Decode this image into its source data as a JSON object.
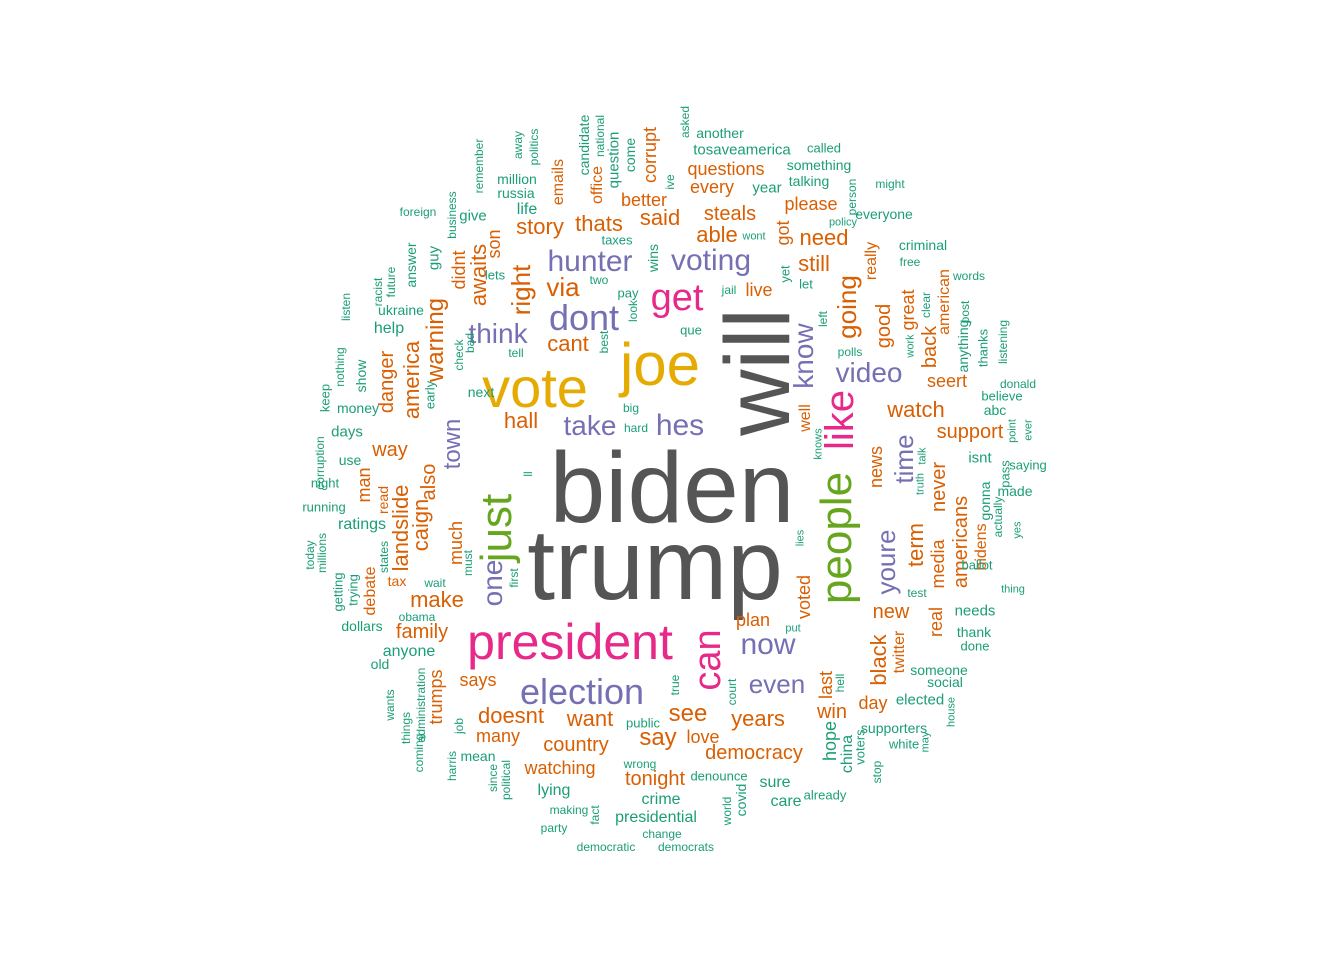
{
  "colors": {
    "c1": "#555555",
    "c2": "#d95f02",
    "c3": "#1b9e77",
    "c4": "#7570b3",
    "c5": "#e7298a",
    "c6": "#66a61e",
    "c7": "#e6ab02"
  },
  "words": [
    {
      "text": "biden",
      "c": "c1"
    },
    {
      "text": "trump",
      "c": "c1"
    },
    {
      "text": "will",
      "c": "c1"
    },
    {
      "text": "joe",
      "c": "c7"
    },
    {
      "text": "vote",
      "c": "c7"
    },
    {
      "text": "president",
      "c": "c5"
    },
    {
      "text": "just",
      "c": "c6"
    },
    {
      "text": "people",
      "c": "c6"
    },
    {
      "text": "like",
      "c": "c5"
    },
    {
      "text": "can",
      "c": "c5"
    },
    {
      "text": "get",
      "c": "c5"
    },
    {
      "text": "election",
      "c": "c4"
    },
    {
      "text": "dont",
      "c": "c4"
    },
    {
      "text": "hunter",
      "c": "c4"
    },
    {
      "text": "voting",
      "c": "c4"
    },
    {
      "text": "now",
      "c": "c4"
    },
    {
      "text": "hes",
      "c": "c4"
    },
    {
      "text": "think",
      "c": "c4"
    },
    {
      "text": "take",
      "c": "c4"
    },
    {
      "text": "know",
      "c": "c4"
    },
    {
      "text": "video",
      "c": "c4"
    },
    {
      "text": "even",
      "c": "c4"
    },
    {
      "text": "youre",
      "c": "c4"
    },
    {
      "text": "time",
      "c": "c4"
    },
    {
      "text": "one",
      "c": "c4"
    },
    {
      "text": "town",
      "c": "c4"
    },
    {
      "text": "via",
      "c": "c2"
    },
    {
      "text": "right",
      "c": "c2"
    },
    {
      "text": "going",
      "c": "c2"
    },
    {
      "text": "thats",
      "c": "c2"
    },
    {
      "text": "story",
      "c": "c2"
    },
    {
      "text": "said",
      "c": "c2"
    },
    {
      "text": "steals",
      "c": "c2"
    },
    {
      "text": "able",
      "c": "c2"
    },
    {
      "text": "need",
      "c": "c2"
    },
    {
      "text": "still",
      "c": "c2"
    },
    {
      "text": "please",
      "c": "c2"
    },
    {
      "text": "questions",
      "c": "c2"
    },
    {
      "text": "every",
      "c": "c2"
    },
    {
      "text": "better",
      "c": "c2"
    },
    {
      "text": "corrupt",
      "c": "c2"
    },
    {
      "text": "emails",
      "c": "c2"
    },
    {
      "text": "office",
      "c": "c2"
    },
    {
      "text": "son",
      "c": "c2"
    },
    {
      "text": "awaits",
      "c": "c2"
    },
    {
      "text": "didnt",
      "c": "c2"
    },
    {
      "text": "warning",
      "c": "c2"
    },
    {
      "text": "america",
      "c": "c2"
    },
    {
      "text": "danger",
      "c": "c2"
    },
    {
      "text": "cant",
      "c": "c2"
    },
    {
      "text": "hall",
      "c": "c2"
    },
    {
      "text": "way",
      "c": "c2"
    },
    {
      "text": "landslide",
      "c": "c2"
    },
    {
      "text": "caign",
      "c": "c2"
    },
    {
      "text": "also",
      "c": "c2"
    },
    {
      "text": "much",
      "c": "c2"
    },
    {
      "text": "make",
      "c": "c2"
    },
    {
      "text": "family",
      "c": "c2"
    },
    {
      "text": "man",
      "c": "c2"
    },
    {
      "text": "debate",
      "c": "c2"
    },
    {
      "text": "read",
      "c": "c2"
    },
    {
      "text": "tax",
      "c": "c2"
    },
    {
      "text": "trumps",
      "c": "c2"
    },
    {
      "text": "says",
      "c": "c2"
    },
    {
      "text": "doesnt",
      "c": "c2"
    },
    {
      "text": "want",
      "c": "c2"
    },
    {
      "text": "many",
      "c": "c2"
    },
    {
      "text": "country",
      "c": "c2"
    },
    {
      "text": "see",
      "c": "c2"
    },
    {
      "text": "say",
      "c": "c2"
    },
    {
      "text": "love",
      "c": "c2"
    },
    {
      "text": "watching",
      "c": "c2"
    },
    {
      "text": "tonight",
      "c": "c2"
    },
    {
      "text": "years",
      "c": "c2"
    },
    {
      "text": "democracy",
      "c": "c2"
    },
    {
      "text": "plan",
      "c": "c2"
    },
    {
      "text": "voted",
      "c": "c2"
    },
    {
      "text": "well",
      "c": "c2"
    },
    {
      "text": "win",
      "c": "c2"
    },
    {
      "text": "last",
      "c": "c2"
    },
    {
      "text": "day",
      "c": "c2"
    },
    {
      "text": "new",
      "c": "c2"
    },
    {
      "text": "black",
      "c": "c2"
    },
    {
      "text": "twitter",
      "c": "c2"
    },
    {
      "text": "news",
      "c": "c2"
    },
    {
      "text": "watch",
      "c": "c2"
    },
    {
      "text": "good",
      "c": "c2"
    },
    {
      "text": "great",
      "c": "c2"
    },
    {
      "text": "really",
      "c": "c2"
    },
    {
      "text": "back",
      "c": "c2"
    },
    {
      "text": "american",
      "c": "c2"
    },
    {
      "text": "seert",
      "c": "c2"
    },
    {
      "text": "support",
      "c": "c2"
    },
    {
      "text": "term",
      "c": "c2"
    },
    {
      "text": "never",
      "c": "c2"
    },
    {
      "text": "media",
      "c": "c2"
    },
    {
      "text": "real",
      "c": "c2"
    },
    {
      "text": "americans",
      "c": "c2"
    },
    {
      "text": "bidens",
      "c": "c2"
    },
    {
      "text": "got",
      "c": "c2"
    },
    {
      "text": "live",
      "c": "c2"
    },
    {
      "text": "tosaveamerica",
      "c": "c3"
    },
    {
      "text": "another",
      "c": "c3"
    },
    {
      "text": "asked",
      "c": "c3"
    },
    {
      "text": "ive",
      "c": "c3"
    },
    {
      "text": "come",
      "c": "c3"
    },
    {
      "text": "question",
      "c": "c3"
    },
    {
      "text": "national",
      "c": "c3"
    },
    {
      "text": "candidate",
      "c": "c3"
    },
    {
      "text": "million",
      "c": "c3"
    },
    {
      "text": "politics",
      "c": "c3"
    },
    {
      "text": "away",
      "c": "c3"
    },
    {
      "text": "remember",
      "c": "c3"
    },
    {
      "text": "russia",
      "c": "c3"
    },
    {
      "text": "life",
      "c": "c3"
    },
    {
      "text": "give",
      "c": "c3"
    },
    {
      "text": "business",
      "c": "c3"
    },
    {
      "text": "foreign",
      "c": "c3"
    },
    {
      "text": "taxes",
      "c": "c3"
    },
    {
      "text": "wins",
      "c": "c3"
    },
    {
      "text": "lets",
      "c": "c3"
    },
    {
      "text": "guy",
      "c": "c3"
    },
    {
      "text": "answer",
      "c": "c3"
    },
    {
      "text": "future",
      "c": "c3"
    },
    {
      "text": "racist",
      "c": "c3"
    },
    {
      "text": "listen",
      "c": "c3"
    },
    {
      "text": "ukraine",
      "c": "c3"
    },
    {
      "text": "help",
      "c": "c3"
    },
    {
      "text": "show",
      "c": "c3"
    },
    {
      "text": "nothing",
      "c": "c3"
    },
    {
      "text": "keep",
      "c": "c3"
    },
    {
      "text": "money",
      "c": "c3"
    },
    {
      "text": "days",
      "c": "c3"
    },
    {
      "text": "corruption",
      "c": "c3"
    },
    {
      "text": "use",
      "c": "c3"
    },
    {
      "text": "night",
      "c": "c3"
    },
    {
      "text": "running",
      "c": "c3"
    },
    {
      "text": "ratings",
      "c": "c3"
    },
    {
      "text": "today",
      "c": "c3"
    },
    {
      "text": "millions",
      "c": "c3"
    },
    {
      "text": "getting",
      "c": "c3"
    },
    {
      "text": "trying",
      "c": "c3"
    },
    {
      "text": "states",
      "c": "c3"
    },
    {
      "text": "wait",
      "c": "c3"
    },
    {
      "text": "dollars",
      "c": "c3"
    },
    {
      "text": "obama",
      "c": "c3"
    },
    {
      "text": "old",
      "c": "c3"
    },
    {
      "text": "anyone",
      "c": "c3"
    },
    {
      "text": "wants",
      "c": "c3"
    },
    {
      "text": "things",
      "c": "c3"
    },
    {
      "text": "coming",
      "c": "c3"
    },
    {
      "text": "administration",
      "c": "c3"
    },
    {
      "text": "job",
      "c": "c3"
    },
    {
      "text": "mean",
      "c": "c3"
    },
    {
      "text": "harris",
      "c": "c3"
    },
    {
      "text": "since",
      "c": "c3"
    },
    {
      "text": "political",
      "c": "c3"
    },
    {
      "text": "lying",
      "c": "c3"
    },
    {
      "text": "making",
      "c": "c3"
    },
    {
      "text": "fact",
      "c": "c3"
    },
    {
      "text": "party",
      "c": "c3"
    },
    {
      "text": "democratic",
      "c": "c3"
    },
    {
      "text": "wrong",
      "c": "c3"
    },
    {
      "text": "public",
      "c": "c3"
    },
    {
      "text": "crime",
      "c": "c3"
    },
    {
      "text": "presidential",
      "c": "c3"
    },
    {
      "text": "change",
      "c": "c3"
    },
    {
      "text": "democrats",
      "c": "c3"
    },
    {
      "text": "denounce",
      "c": "c3"
    },
    {
      "text": "world",
      "c": "c3"
    },
    {
      "text": "covid",
      "c": "c3"
    },
    {
      "text": "sure",
      "c": "c3"
    },
    {
      "text": "care",
      "c": "c3"
    },
    {
      "text": "already",
      "c": "c3"
    },
    {
      "text": "hope",
      "c": "c3"
    },
    {
      "text": "china",
      "c": "c3"
    },
    {
      "text": "voters",
      "c": "c3"
    },
    {
      "text": "stop",
      "c": "c3"
    },
    {
      "text": "supporters",
      "c": "c3"
    },
    {
      "text": "white",
      "c": "c3"
    },
    {
      "text": "may",
      "c": "c3"
    },
    {
      "text": "elected",
      "c": "c3"
    },
    {
      "text": "house",
      "c": "c3"
    },
    {
      "text": "social",
      "c": "c3"
    },
    {
      "text": "someone",
      "c": "c3"
    },
    {
      "text": "done",
      "c": "c3"
    },
    {
      "text": "thank",
      "c": "c3"
    },
    {
      "text": "needs",
      "c": "c3"
    },
    {
      "text": "thing",
      "c": "c3"
    },
    {
      "text": "ballot",
      "c": "c3"
    },
    {
      "text": "yes",
      "c": "c3"
    },
    {
      "text": "actually",
      "c": "c3"
    },
    {
      "text": "gonna",
      "c": "c3"
    },
    {
      "text": "made",
      "c": "c3"
    },
    {
      "text": "saying",
      "c": "c3"
    },
    {
      "text": "pass",
      "c": "c3"
    },
    {
      "text": "isnt",
      "c": "c3"
    },
    {
      "text": "ever",
      "c": "c3"
    },
    {
      "text": "point",
      "c": "c3"
    },
    {
      "text": "abc",
      "c": "c3"
    },
    {
      "text": "believe",
      "c": "c3"
    },
    {
      "text": "donald",
      "c": "c3"
    },
    {
      "text": "thanks",
      "c": "c3"
    },
    {
      "text": "listening",
      "c": "c3"
    },
    {
      "text": "anything",
      "c": "c3"
    },
    {
      "text": "post",
      "c": "c3"
    },
    {
      "text": "words",
      "c": "c3"
    },
    {
      "text": "clear",
      "c": "c3"
    },
    {
      "text": "work",
      "c": "c3"
    },
    {
      "text": "free",
      "c": "c3"
    },
    {
      "text": "criminal",
      "c": "c3"
    },
    {
      "text": "everyone",
      "c": "c3"
    },
    {
      "text": "might",
      "c": "c3"
    },
    {
      "text": "person",
      "c": "c3"
    },
    {
      "text": "policy",
      "c": "c3"
    },
    {
      "text": "called",
      "c": "c3"
    },
    {
      "text": "something",
      "c": "c3"
    },
    {
      "text": "talking",
      "c": "c3"
    },
    {
      "text": "year",
      "c": "c3"
    },
    {
      "text": "wont",
      "c": "c3"
    },
    {
      "text": "yet",
      "c": "c3"
    },
    {
      "text": "let",
      "c": "c3"
    },
    {
      "text": "left",
      "c": "c3"
    },
    {
      "text": "polls",
      "c": "c3"
    },
    {
      "text": "jail",
      "c": "c3"
    },
    {
      "text": "two",
      "c": "c3"
    },
    {
      "text": "pay",
      "c": "c3"
    },
    {
      "text": "look",
      "c": "c3"
    },
    {
      "text": "que",
      "c": "c3"
    },
    {
      "text": "best",
      "c": "c3"
    },
    {
      "text": "tell",
      "c": "c3"
    },
    {
      "text": "check",
      "c": "c3"
    },
    {
      "text": "bad",
      "c": "c3"
    },
    {
      "text": "early",
      "c": "c3"
    },
    {
      "text": "next",
      "c": "c3"
    },
    {
      "text": "big",
      "c": "c3"
    },
    {
      "text": "hard",
      "c": "c3"
    },
    {
      "text": "ll",
      "c": "c3"
    },
    {
      "text": "must",
      "c": "c3"
    },
    {
      "text": "first",
      "c": "c3"
    },
    {
      "text": "knows",
      "c": "c3"
    },
    {
      "text": "lies",
      "c": "c3"
    },
    {
      "text": "talk",
      "c": "c3"
    },
    {
      "text": "truth",
      "c": "c3"
    },
    {
      "text": "test",
      "c": "c3"
    },
    {
      "text": "put",
      "c": "c3"
    },
    {
      "text": "court",
      "c": "c3"
    },
    {
      "text": "true",
      "c": "c3"
    },
    {
      "text": "hell",
      "c": "c3"
    },
    {
      "text": "ask",
      "c": "c3"
    }
  ]
}
